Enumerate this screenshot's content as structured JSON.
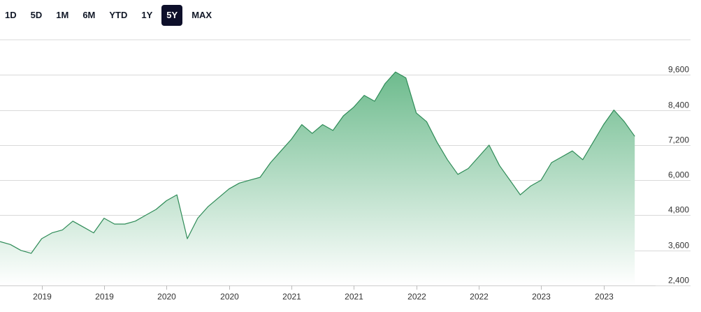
{
  "range_buttons": {
    "items": [
      {
        "label": "1D"
      },
      {
        "label": "5D"
      },
      {
        "label": "1M"
      },
      {
        "label": "6M"
      },
      {
        "label": "YTD"
      },
      {
        "label": "1Y"
      },
      {
        "label": "5Y"
      },
      {
        "label": "MAX"
      }
    ],
    "selected": "5Y"
  },
  "colors": {
    "line": "#2e8b57",
    "fill_top": "#6dbb8d",
    "fill_bottom": "#ffffff",
    "grid": "#d9d9d9",
    "active_bg": "#0d0f2a"
  },
  "chart_data": {
    "type": "area",
    "title": "",
    "xlabel": "",
    "ylabel": "",
    "grid": true,
    "ylim": [
      2400,
      10800
    ],
    "y_ticks": [
      "2,400",
      "3,600",
      "4,800",
      "6,000",
      "7,200",
      "8,400",
      "9,600"
    ],
    "x_ticks": [
      "2019",
      "2019",
      "2020",
      "2020",
      "2021",
      "2021",
      "2022",
      "2022",
      "2023",
      "2023"
    ],
    "x_tick_dates": [
      "2019-01",
      "2019-07",
      "2020-01",
      "2020-07",
      "2021-01",
      "2021-07",
      "2022-01",
      "2022-07",
      "2023-01",
      "2023-07"
    ],
    "x_range": [
      "2018-09",
      "2023-12"
    ],
    "series": [
      {
        "x": [
          "2018-09",
          "2018-10",
          "2018-11",
          "2018-12",
          "2019-01",
          "2019-02",
          "2019-03",
          "2019-04",
          "2019-05",
          "2019-06",
          "2019-07",
          "2019-08",
          "2019-09",
          "2019-10",
          "2019-11",
          "2019-12",
          "2020-01",
          "2020-02",
          "2020-03",
          "2020-04",
          "2020-05",
          "2020-06",
          "2020-07",
          "2020-08",
          "2020-09",
          "2020-10",
          "2020-11",
          "2020-12",
          "2021-01",
          "2021-02",
          "2021-03",
          "2021-04",
          "2021-05",
          "2021-06",
          "2021-07",
          "2021-08",
          "2021-09",
          "2021-10",
          "2021-11",
          "2021-12",
          "2022-01",
          "2022-02",
          "2022-03",
          "2022-04",
          "2022-05",
          "2022-06",
          "2022-07",
          "2022-08",
          "2022-09",
          "2022-10",
          "2022-11",
          "2022-12",
          "2023-01",
          "2023-02",
          "2023-03",
          "2023-04",
          "2023-05",
          "2023-06",
          "2023-07",
          "2023-08",
          "2023-09",
          "2023-10"
        ],
        "y": [
          3900,
          3800,
          3600,
          3500,
          4000,
          4200,
          4300,
          4600,
          4400,
          4200,
          4700,
          4500,
          4500,
          4600,
          4800,
          5000,
          5300,
          5500,
          4000,
          4700,
          5100,
          5400,
          5700,
          5900,
          6000,
          6100,
          6600,
          7000,
          7400,
          7900,
          7600,
          7900,
          7700,
          8200,
          8500,
          8900,
          8700,
          9300,
          9700,
          9500,
          8300,
          8000,
          7300,
          6700,
          6200,
          6400,
          6800,
          7200,
          6500,
          6000,
          5500,
          5800,
          6000,
          6600,
          6800,
          7000,
          6700,
          7300,
          7900,
          8400,
          8000,
          7500
        ]
      }
    ]
  }
}
